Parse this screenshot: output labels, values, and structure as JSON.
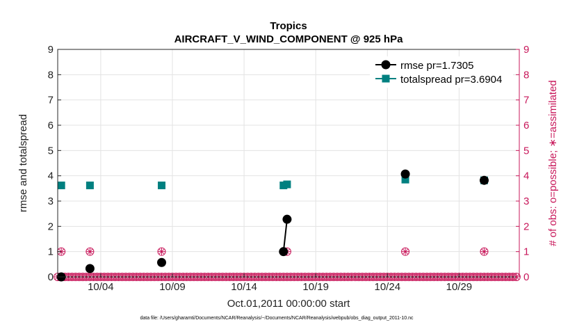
{
  "chart_data": {
    "type": "line",
    "title": "Tropics",
    "subtitle": "AIRCRAFT_V_WIND_COMPONENT @ 925 hPa",
    "xlabel": "Oct.01,2011 00:00:00 start",
    "ylabel_left": "rmse and totalspread",
    "ylabel_right": "# of obs: o=possible; ∗=assimilated",
    "footnote": "data file: /Users/gharamti/Documents/NCAR/Reanalysis/~/Documents/NCAR/Reanalysis/webpub/obs_diag_output_2011-10.nc",
    "xlim": [
      1,
      33.2
    ],
    "ylim": [
      0,
      9
    ],
    "ylim_right": [
      0,
      9
    ],
    "grid": true,
    "x_ticks": [
      4,
      9,
      14,
      19,
      24,
      29
    ],
    "x_tick_labels": [
      "10/04",
      "10/09",
      "10/14",
      "10/19",
      "10/24",
      "10/29"
    ],
    "y_ticks": [
      0,
      1,
      2,
      3,
      4,
      5,
      6,
      7,
      8,
      9
    ],
    "y_tick_labels": [
      "0",
      "1",
      "2",
      "3",
      "4",
      "5",
      "6",
      "7",
      "8",
      "9"
    ],
    "y_right_ticks": [
      0,
      1,
      2,
      3,
      4,
      5,
      6,
      7,
      8,
      9
    ],
    "y_right_tick_labels": [
      "0",
      "1",
      "2",
      "3",
      "4",
      "5",
      "6",
      "7",
      "8",
      "9"
    ],
    "legend_position": "top-right",
    "colors": {
      "rmse": "#000000",
      "totalspread": "#008080",
      "obs": "#c8175a"
    },
    "series": [
      {
        "name": "rmse pr=1.7305",
        "color": "#000000",
        "marker": "circle",
        "points": [
          [
            1.25,
            0.0
          ],
          [
            3.25,
            0.33
          ],
          [
            8.25,
            0.57
          ],
          [
            16.75,
            1.0
          ],
          [
            17.0,
            2.28
          ],
          [
            25.25,
            4.07
          ],
          [
            30.75,
            3.82
          ]
        ],
        "segments": [
          [
            [
              16.75,
              1.0
            ],
            [
              17.0,
              2.28
            ]
          ]
        ]
      },
      {
        "name": "totalspread pr=3.6904",
        "color": "#008080",
        "marker": "square",
        "points": [
          [
            1.25,
            3.62
          ],
          [
            3.25,
            3.62
          ],
          [
            8.25,
            3.62
          ],
          [
            16.75,
            3.62
          ],
          [
            17.0,
            3.66
          ],
          [
            25.25,
            3.85
          ],
          [
            30.75,
            3.82
          ]
        ],
        "segments": [
          [
            [
              16.75,
              3.62
            ],
            [
              17.0,
              3.66
            ]
          ]
        ]
      }
    ],
    "obs_possible_nonzero": [
      [
        1.25,
        1
      ],
      [
        3.25,
        1
      ],
      [
        8.25,
        1
      ],
      [
        16.75,
        1
      ],
      [
        17.0,
        1
      ],
      [
        25.25,
        1
      ],
      [
        30.75,
        1
      ]
    ],
    "obs_assimilated_nonzero": [
      [
        1.25,
        1
      ],
      [
        3.25,
        1
      ],
      [
        8.25,
        1
      ],
      [
        16.75,
        1
      ],
      [
        17.0,
        1
      ],
      [
        25.25,
        1
      ],
      [
        30.75,
        1
      ]
    ],
    "obs_zero_x_start": 1.0,
    "obs_zero_x_end": 33.0,
    "obs_zero_step": 0.25
  }
}
